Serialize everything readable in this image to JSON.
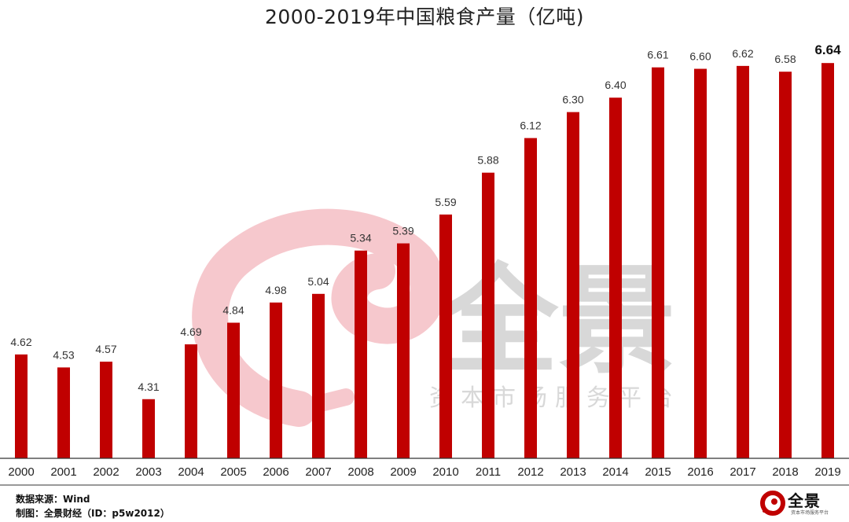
{
  "chart_data": {
    "type": "bar",
    "title": "2000-2019年中国粮食产量（亿吨)",
    "categories": [
      "2000",
      "2001",
      "2002",
      "2003",
      "2004",
      "2005",
      "2006",
      "2007",
      "2008",
      "2009",
      "2010",
      "2011",
      "2012",
      "2013",
      "2014",
      "2015",
      "2016",
      "2017",
      "2018",
      "2019"
    ],
    "values": [
      4.62,
      4.53,
      4.57,
      4.31,
      4.69,
      4.84,
      4.98,
      5.04,
      5.34,
      5.39,
      5.59,
      5.88,
      6.12,
      6.3,
      6.4,
      6.61,
      6.6,
      6.62,
      6.58,
      6.64
    ],
    "value_labels": [
      "4.62",
      "4.53",
      "4.57",
      "4.31",
      "4.69",
      "4.84",
      "4.98",
      "5.04",
      "5.34",
      "5.39",
      "5.59",
      "5.88",
      "6.12",
      "6.30",
      "6.40",
      "6.61",
      "6.60",
      "6.62",
      "6.58",
      "6.64"
    ],
    "highlight_index": 19,
    "ylim": [
      3.9,
      6.75
    ],
    "xlabel": "",
    "ylabel": "",
    "grid": false,
    "bar_color": "#C00000"
  },
  "watermark": {
    "main": "全景",
    "sub": "资本市场服务平台",
    "text_color": "#CCCCCC",
    "swirl_color": "#F6C8CD"
  },
  "footer": {
    "source": "数据来源：Wind",
    "maker": "制图：全景财经（ID：p5w2012）"
  },
  "logo": {
    "main": "全景",
    "sub": "资本市场服务平台",
    "icon": "p5w-swirl-icon",
    "icon_color": "#C00000"
  },
  "colors": {
    "axis": "#333333",
    "text": "#222222"
  }
}
